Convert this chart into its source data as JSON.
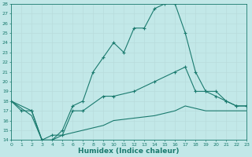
{
  "xlabel": "Humidex (Indice chaleur)",
  "bg_color": "#c2e8e8",
  "grid_color": "#aad4d4",
  "line_color": "#1a7a6e",
  "xlim": [
    0,
    23
  ],
  "ylim": [
    14,
    28
  ],
  "xticks": [
    0,
    1,
    2,
    3,
    4,
    5,
    6,
    7,
    8,
    9,
    10,
    11,
    12,
    13,
    14,
    15,
    16,
    17,
    18,
    19,
    20,
    21,
    22,
    23
  ],
  "yticks": [
    14,
    15,
    16,
    17,
    18,
    19,
    20,
    21,
    22,
    23,
    24,
    25,
    26,
    27,
    28
  ],
  "line1_x": [
    0,
    1,
    2,
    3,
    4,
    5,
    6,
    7,
    8,
    9,
    10,
    11,
    12,
    13,
    14,
    15,
    16,
    17,
    18,
    19,
    20,
    21,
    22,
    23
  ],
  "line1_y": [
    18,
    17,
    17,
    14,
    14,
    15,
    17.5,
    18,
    21,
    22.5,
    24,
    23,
    25.5,
    25.5,
    27.5,
    28,
    28,
    25,
    21,
    19,
    19,
    18,
    17.5,
    17.5
  ],
  "line2_x": [
    0,
    2,
    3,
    4,
    5,
    6,
    7,
    9,
    10,
    12,
    14,
    16,
    17,
    18,
    19,
    20,
    21,
    22,
    23
  ],
  "line2_y": [
    18,
    17,
    14,
    14.5,
    14.5,
    17,
    17,
    18.5,
    18.5,
    19,
    20,
    21,
    21.5,
    19,
    19,
    18.5,
    18,
    17.5,
    17.5
  ],
  "line3_x": [
    0,
    2,
    3,
    4,
    5,
    9,
    10,
    14,
    16,
    17,
    19,
    20,
    22,
    23
  ],
  "line3_y": [
    18,
    16.5,
    14,
    14,
    14.5,
    15.5,
    16,
    16.5,
    17,
    17.5,
    17,
    17,
    17,
    17
  ]
}
